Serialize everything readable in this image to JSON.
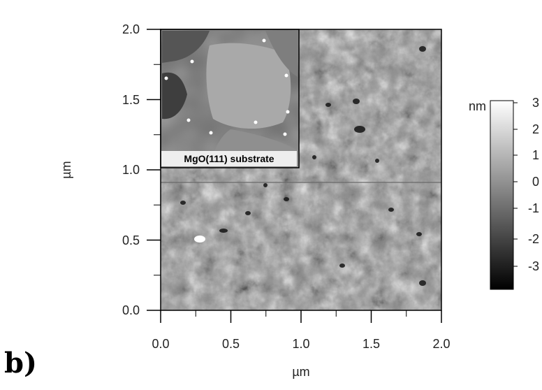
{
  "panel_label": "b)",
  "image": {
    "x_axis": {
      "label": "µm",
      "ticks": [
        "0.0",
        "0.5",
        "1.0",
        "1.5",
        "2.0"
      ]
    },
    "y_axis": {
      "label": "µm",
      "ticks": [
        "0.0",
        "0.5",
        "1.0",
        "1.5",
        "2.0"
      ]
    },
    "description": "AFM topography scan with grainy grey texture and dark pits"
  },
  "inset": {
    "label": "MgO(111) substrate"
  },
  "colorbar": {
    "unit": "nm",
    "ticks": [
      "3",
      "2",
      "1",
      "0",
      "-1",
      "-2",
      "-3"
    ],
    "colors": {
      "top": "#ffffff",
      "bottom": "#000000"
    }
  }
}
